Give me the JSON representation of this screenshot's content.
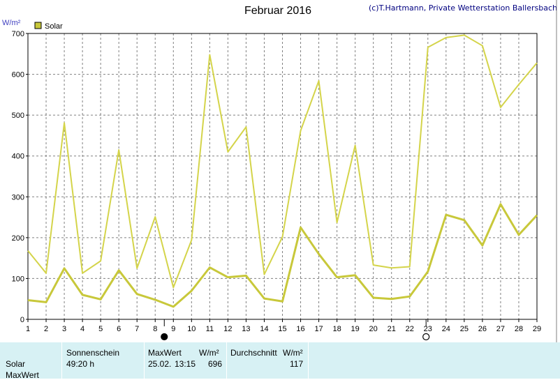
{
  "header": {
    "title": "Februar 2016",
    "credit": "(c)T.Hartmann, Private Wetterstation Ballersbach"
  },
  "legend": {
    "label": "Solar",
    "color": "#c8c83a"
  },
  "chart_data": {
    "type": "line",
    "title": "Februar 2016",
    "ylabel": "W/m²",
    "xlabel": "",
    "ylim": [
      0,
      700
    ],
    "y_ticks": [
      0,
      100,
      200,
      300,
      400,
      500,
      600,
      700
    ],
    "grid": true,
    "legend_position": "top-left",
    "x": [
      1,
      2,
      3,
      4,
      5,
      6,
      7,
      8,
      9,
      10,
      11,
      12,
      13,
      14,
      15,
      16,
      17,
      18,
      19,
      20,
      21,
      22,
      23,
      24,
      25,
      26,
      27,
      28,
      29
    ],
    "series": [
      {
        "name": "Solar",
        "role": "max",
        "color": "#d4d44a",
        "values": [
          168,
          113,
          481,
          113,
          143,
          415,
          125,
          251,
          78,
          194,
          648,
          410,
          471,
          110,
          202,
          462,
          584,
          237,
          426,
          133,
          126,
          129,
          666,
          690,
          696,
          670,
          519,
          575,
          628
        ]
      },
      {
        "name": "Solar",
        "role": "mean",
        "color": "#c8c83a",
        "values": [
          47,
          42,
          125,
          60,
          49,
          120,
          62,
          48,
          31,
          70,
          127,
          103,
          107,
          51,
          44,
          225,
          160,
          103,
          108,
          53,
          50,
          56,
          117,
          256,
          243,
          181,
          282,
          207,
          255
        ]
      }
    ],
    "moon_markers": [
      {
        "day": 8.5,
        "phase": "new-moon"
      },
      {
        "day": 22.9,
        "phase": "full-moon"
      }
    ]
  },
  "summary": {
    "rows": [
      "Solar",
      "MaxWert"
    ],
    "sonnenschein_header": "Sonnenschein",
    "sonnenschein_value": "49:20 h",
    "maxwert_header": "MaxWert",
    "maxwert_unit": "W/m²",
    "maxwert_date": "25.02.",
    "maxwert_time": "13:15",
    "maxwert_value": "696",
    "durchschnitt_header": "Durchschnitt",
    "durchschnitt_unit": "W/m²",
    "durchschnitt_value": "117"
  }
}
